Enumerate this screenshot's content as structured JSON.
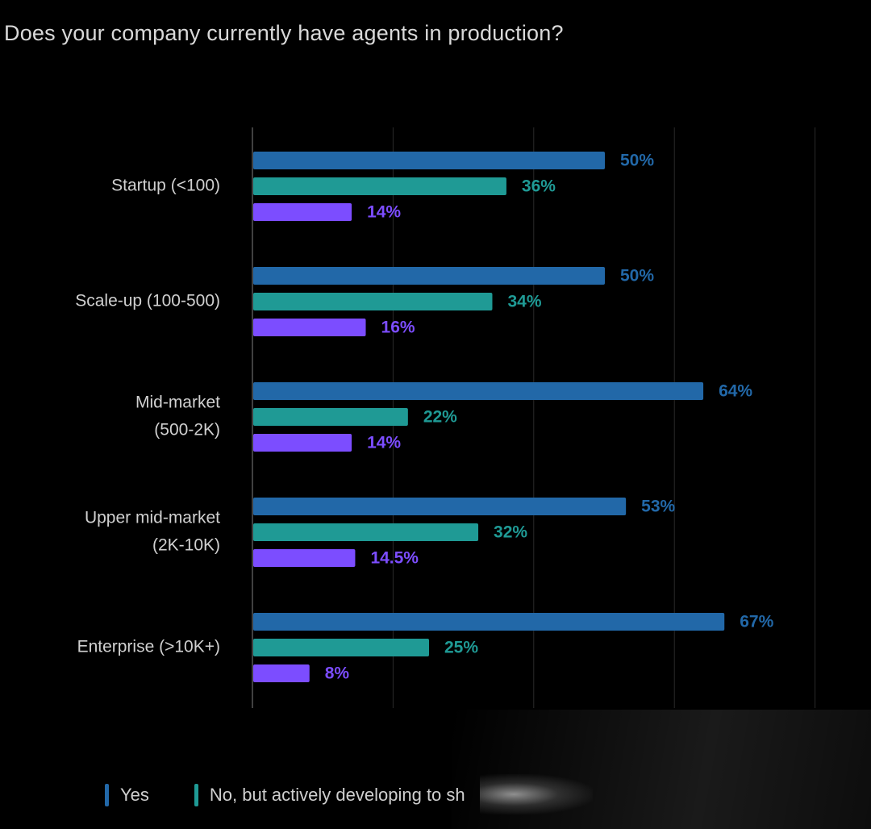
{
  "title": "Does your company currently have agents in production?",
  "colors": {
    "yes": "#2268a8",
    "developing": "#1f9a95",
    "other": "#7c4dff",
    "grid": "#2a2a2a",
    "axis": "#555555",
    "category_text": "#d0d0d0"
  },
  "legend": [
    {
      "label": "Yes",
      "color_key": "yes"
    },
    {
      "label": "No, but actively developing to sh",
      "color_key": "developing"
    }
  ],
  "chart_data": {
    "type": "bar",
    "orientation": "horizontal",
    "title": "Does your company currently have agents in production?",
    "categories": [
      [
        "Startup (<100)"
      ],
      [
        "Scale-up (100-500)"
      ],
      [
        "Mid-market",
        "(500-2K)"
      ],
      [
        "Upper mid-market",
        "(2K-10K)"
      ],
      [
        "Enterprise (>10K+)"
      ]
    ],
    "series": [
      {
        "name": "Yes",
        "color_key": "yes",
        "values": [
          50,
          50,
          64,
          53,
          67
        ],
        "labels": [
          "50%",
          "50%",
          "64%",
          "53%",
          "67%"
        ]
      },
      {
        "name": "No, but actively developing to sh",
        "color_key": "developing",
        "values": [
          36,
          34,
          22,
          32,
          25
        ],
        "labels": [
          "36%",
          "34%",
          "22%",
          "32%",
          "25%"
        ]
      },
      {
        "name": "",
        "color_key": "other",
        "values": [
          14,
          16,
          14,
          14.5,
          8
        ],
        "labels": [
          "14%",
          "16%",
          "14%",
          "14.5%",
          "8%"
        ]
      }
    ],
    "xlim": [
      0,
      80
    ],
    "grid_values": [
      20,
      40,
      60,
      80
    ],
    "xlabel": "",
    "ylabel": "",
    "grid": true
  }
}
